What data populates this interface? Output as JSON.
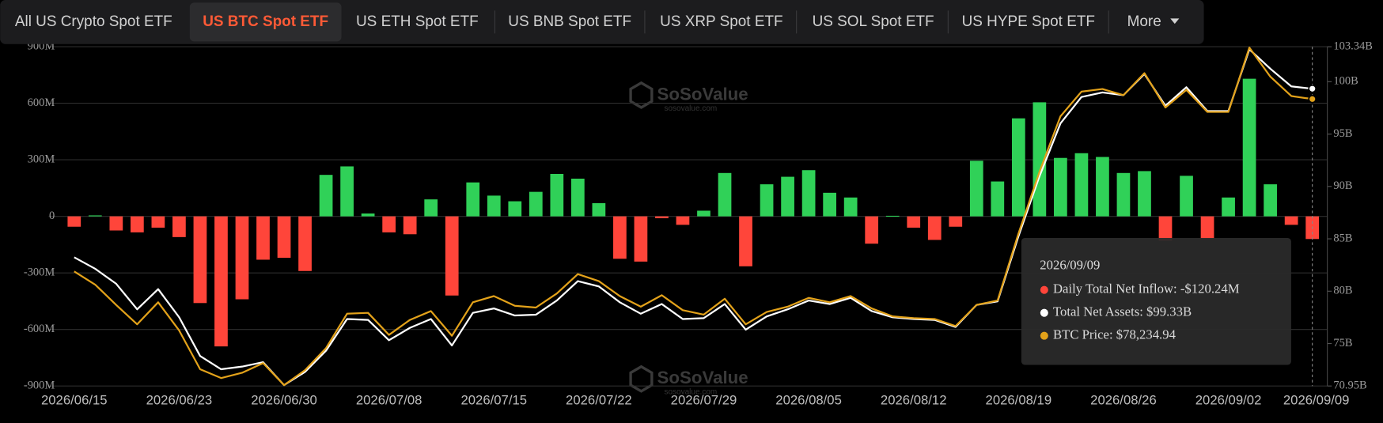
{
  "tabs": {
    "items": [
      "All US Crypto Spot ETF",
      "US BTC Spot ETF",
      "US ETH Spot ETF",
      "US BNB Spot ETF",
      "US XRP Spot ETF",
      "US SOL Spot ETF",
      "US HYPE Spot ETF",
      "More"
    ],
    "active": 1
  },
  "chart_data": {
    "type": "bar",
    "categories": [
      "2026/06/15",
      null,
      null,
      null,
      null,
      "2026/06/23",
      null,
      null,
      null,
      null,
      "2026/06/30",
      null,
      null,
      null,
      null,
      "2026/07/08",
      null,
      null,
      null,
      null,
      "2026/07/15",
      null,
      null,
      null,
      null,
      "2026/07/22",
      null,
      null,
      null,
      null,
      "2026/07/29",
      null,
      null,
      null,
      null,
      "2026/08/05",
      null,
      null,
      null,
      null,
      "2026/08/12",
      null,
      null,
      null,
      null,
      "2026/08/19",
      null,
      null,
      null,
      null,
      "2026/08/26",
      null,
      null,
      null,
      null,
      "2026/09/02",
      null,
      null,
      null,
      "2026/09/09"
    ],
    "series": [
      {
        "type": "bar",
        "color": "#30d158",
        "negative_color": "#ff453a",
        "values": [
          -55,
          5,
          -75,
          -85,
          -60,
          -110,
          -460,
          -690,
          -440,
          -230,
          -220,
          -290,
          220,
          265,
          15,
          -85,
          -95,
          90,
          -420,
          180,
          110,
          80,
          130,
          225,
          200,
          70,
          -225,
          -240,
          -10,
          -45,
          30,
          230,
          -265,
          170,
          210,
          245,
          125,
          100,
          -145,
          3,
          -60,
          -125,
          -55,
          295,
          185,
          520,
          605,
          310,
          335,
          315,
          230,
          240,
          -130,
          215,
          -120,
          100,
          730,
          170,
          -45,
          -120.24
        ]
      },
      {
        "type": "line",
        "color": "#ffffff",
        "axis": "y2",
        "values": [
          83.23,
          82.14,
          80.71,
          78.27,
          80.2,
          77.51,
          73.81,
          72.55,
          72.8,
          73.22,
          71.03,
          72.3,
          74.32,
          77.34,
          77.26,
          75.32,
          76.5,
          77.34,
          74.82,
          77.93,
          78.35,
          77.68,
          77.76,
          79.11,
          80.96,
          80.46,
          78.94,
          77.85,
          78.77,
          77.34,
          77.43,
          78.77,
          76.33,
          77.6,
          78.27,
          79.11,
          78.77,
          79.36,
          78.1,
          77.51,
          77.34,
          77.26,
          76.59,
          78.69,
          79.03,
          85.25,
          90.97,
          96.02,
          98.54,
          98.97,
          98.71,
          100.73,
          97.7,
          99.47,
          97.2,
          97.2,
          103.09,
          101.24,
          99.55,
          99.33
        ]
      },
      {
        "type": "line",
        "color": "#e3a21a",
        "axis": "y3",
        "values": [
          65178,
          64176,
          62641,
          61173,
          62841,
          60705,
          57768,
          57101,
          57501,
          58236,
          56567,
          57702,
          59370,
          61974,
          62040,
          60372,
          61506,
          62174,
          60305,
          62841,
          63309,
          62574,
          62441,
          63509,
          64977,
          64443,
          63309,
          62508,
          63375,
          62241,
          61907,
          63108,
          61173,
          62107,
          62508,
          63175,
          62841,
          63309,
          62374,
          61773,
          61640,
          61573,
          61039,
          62641,
          62975,
          68048,
          72720,
          76926,
          78795,
          78995,
          78528,
          80196,
          77593,
          78928,
          77259,
          77259,
          82132,
          79929,
          78461,
          78234.94
        ]
      }
    ],
    "ylim": [
      -900,
      900
    ],
    "yticks": [
      {
        "value": 900,
        "label": "900M"
      },
      {
        "value": 600,
        "label": "600M"
      },
      {
        "value": 300,
        "label": "300M"
      },
      0,
      {
        "value": -300,
        "label": "-300M"
      },
      {
        "value": -600,
        "label": "-600M"
      },
      {
        "value": -900,
        "label": "-900M"
      }
    ],
    "y2lim": [
      70.95,
      103.34
    ],
    "y2ticks": [
      {
        "value": 103.34,
        "label": "103.34B"
      },
      {
        "value": 100,
        "label": "100B"
      },
      {
        "value": 95,
        "label": "95B"
      },
      {
        "value": 90,
        "label": "90B"
      },
      {
        "value": 85,
        "label": "85B"
      },
      {
        "value": 80,
        "label": "80B"
      },
      {
        "value": 75,
        "label": "75B"
      },
      {
        "value": 70.95,
        "label": "70.95B"
      }
    ],
    "y3lim": [
      56500,
      82200
    ],
    "grid": true,
    "tooltip": {
      "title": "2026/09/09",
      "items": [
        "Daily Total Net Inflow: -$120.24M",
        "Total Net Assets: $99.33B",
        "BTC Price: $78,234.94"
      ]
    },
    "watermark": {
      "text": "SoSoValue",
      "sub": "sosovalue.com"
    }
  }
}
